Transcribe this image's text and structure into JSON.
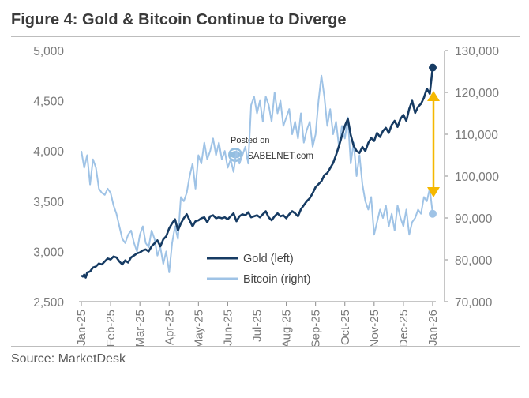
{
  "header": {
    "title": "Figure 4: Gold & Bitcoin Continue to Diverge"
  },
  "footer": {
    "source": "Source: MarketDesk"
  },
  "watermark": {
    "line1": "Posted on",
    "line2": "ISABELNET.com"
  },
  "colors": {
    "gold": "#163b63",
    "bitcoin": "#9fc3e6",
    "arrow": "#f5b800",
    "axis": "#8c8c8c",
    "tick_text": "#7a7a7a"
  },
  "chart_data": {
    "type": "line",
    "title": "Figure 4: Gold & Bitcoin Continue to Diverge",
    "x_tick_labels": [
      "Jan-25",
      "Feb-25",
      "Mar-25",
      "Apr-25",
      "May-25",
      "Jun-25",
      "Jul-25",
      "Aug-25",
      "Sep-25",
      "Oct-25",
      "Nov-25",
      "Dec-25",
      "Jan-26"
    ],
    "y_left": {
      "range": [
        2500,
        5000
      ],
      "ticks": [
        2500,
        3000,
        3500,
        4000,
        4500,
        5000
      ],
      "tick_labels": [
        "2,500",
        "3,000",
        "3,500",
        "4,000",
        "4,500",
        "5,000"
      ]
    },
    "y_right": {
      "range": [
        70000,
        130000
      ],
      "ticks": [
        70000,
        80000,
        90000,
        100000,
        110000,
        120000,
        130000
      ],
      "tick_labels": [
        "70,000",
        "80,000",
        "90,000",
        "100,000",
        "110,000",
        "120,000",
        "130,000"
      ]
    },
    "legend": [
      "Gold (left)",
      "Bitcoin (right)"
    ],
    "series": [
      {
        "name": "Gold (left)",
        "axis": "left",
        "x": [
          0,
          0.05,
          0.1,
          0.15,
          0.2,
          0.3,
          0.4,
          0.5,
          0.6,
          0.7,
          0.8,
          0.9,
          1.0,
          1.1,
          1.2,
          1.3,
          1.4,
          1.5,
          1.6,
          1.7,
          1.8,
          1.9,
          2.0,
          2.1,
          2.2,
          2.3,
          2.4,
          2.5,
          2.6,
          2.7,
          2.8,
          2.9,
          3.0,
          3.1,
          3.2,
          3.3,
          3.4,
          3.5,
          3.6,
          3.7,
          3.8,
          3.9,
          4.0,
          4.1,
          4.2,
          4.3,
          4.4,
          4.5,
          4.6,
          4.7,
          4.8,
          4.9,
          5.0,
          5.1,
          5.2,
          5.3,
          5.4,
          5.5,
          5.6,
          5.7,
          5.8,
          5.9,
          6.0,
          6.1,
          6.2,
          6.3,
          6.4,
          6.5,
          6.6,
          6.7,
          6.8,
          6.9,
          7.0,
          7.1,
          7.2,
          7.3,
          7.4,
          7.5,
          7.6,
          7.7,
          7.8,
          7.9,
          8.0,
          8.1,
          8.2,
          8.3,
          8.4,
          8.5,
          8.6,
          8.7,
          8.8,
          8.9,
          9.0,
          9.1,
          9.2,
          9.3,
          9.4,
          9.5,
          9.6,
          9.7,
          9.8,
          9.9,
          10.0,
          10.1,
          10.2,
          10.3,
          10.4,
          10.5,
          10.6,
          10.7,
          10.8,
          10.9,
          11.0,
          11.1,
          11.2,
          11.3,
          11.4,
          11.5,
          11.6,
          11.7,
          11.8,
          11.9,
          12.0
        ],
        "values": [
          2760,
          2750,
          2770,
          2740,
          2790,
          2800,
          2840,
          2850,
          2880,
          2870,
          2900,
          2930,
          2920,
          2950,
          2940,
          2900,
          2870,
          2910,
          2890,
          2940,
          2960,
          2980,
          2990,
          3010,
          3020,
          3000,
          3050,
          3080,
          3110,
          3050,
          3120,
          3150,
          3230,
          3280,
          3320,
          3210,
          3280,
          3330,
          3370,
          3310,
          3250,
          3300,
          3310,
          3330,
          3340,
          3290,
          3350,
          3360,
          3330,
          3340,
          3330,
          3340,
          3320,
          3350,
          3380,
          3300,
          3350,
          3370,
          3360,
          3390,
          3340,
          3350,
          3360,
          3340,
          3370,
          3400,
          3340,
          3310,
          3350,
          3380,
          3350,
          3360,
          3330,
          3370,
          3400,
          3380,
          3350,
          3420,
          3460,
          3500,
          3530,
          3580,
          3640,
          3670,
          3700,
          3760,
          3780,
          3830,
          3880,
          3960,
          4050,
          4150,
          4250,
          4320,
          4160,
          4050,
          4000,
          3980,
          4040,
          4000,
          4080,
          4130,
          4100,
          4180,
          4140,
          4200,
          4230,
          4180,
          4260,
          4300,
          4240,
          4320,
          4360,
          4300,
          4420,
          4500,
          4380,
          4440,
          4470,
          4530,
          4620,
          4570,
          4830
        ]
      },
      {
        "name": "Bitcoin (right)",
        "axis": "right",
        "x": [
          0,
          0.1,
          0.2,
          0.3,
          0.4,
          0.5,
          0.6,
          0.7,
          0.8,
          0.9,
          1.0,
          1.1,
          1.2,
          1.3,
          1.4,
          1.5,
          1.6,
          1.7,
          1.8,
          1.9,
          2.0,
          2.1,
          2.2,
          2.3,
          2.4,
          2.5,
          2.6,
          2.7,
          2.8,
          2.9,
          3.0,
          3.1,
          3.2,
          3.3,
          3.4,
          3.5,
          3.6,
          3.7,
          3.8,
          3.9,
          4.0,
          4.1,
          4.2,
          4.3,
          4.4,
          4.5,
          4.6,
          4.7,
          4.8,
          4.9,
          5.0,
          5.1,
          5.2,
          5.3,
          5.4,
          5.5,
          5.6,
          5.7,
          5.8,
          5.9,
          6.0,
          6.1,
          6.2,
          6.3,
          6.4,
          6.5,
          6.6,
          6.7,
          6.8,
          6.9,
          7.0,
          7.1,
          7.2,
          7.3,
          7.4,
          7.5,
          7.6,
          7.7,
          7.8,
          7.9,
          8.0,
          8.1,
          8.2,
          8.3,
          8.4,
          8.5,
          8.6,
          8.7,
          8.8,
          8.9,
          9.0,
          9.1,
          9.2,
          9.3,
          9.4,
          9.5,
          9.6,
          9.7,
          9.8,
          9.9,
          10.0,
          10.1,
          10.2,
          10.3,
          10.4,
          10.5,
          10.6,
          10.7,
          10.8,
          10.9,
          11.0,
          11.1,
          11.2,
          11.3,
          11.4,
          11.5,
          11.6,
          11.7,
          11.8,
          11.9,
          12.0
        ],
        "values": [
          106000,
          102000,
          105000,
          98000,
          104000,
          102000,
          97000,
          96000,
          95500,
          97000,
          96000,
          93000,
          91000,
          88000,
          85000,
          84000,
          86000,
          87000,
          84000,
          82000,
          86000,
          88000,
          84000,
          83000,
          87000,
          85000,
          81000,
          83000,
          79000,
          82000,
          77000,
          84000,
          88000,
          85000,
          95000,
          94000,
          96000,
          100000,
          103000,
          97000,
          105000,
          103000,
          108000,
          104000,
          106000,
          109000,
          105000,
          108000,
          104000,
          106000,
          102000,
          104000,
          101000,
          106000,
          103000,
          105000,
          107000,
          103000,
          117000,
          119000,
          115000,
          118000,
          113000,
          119000,
          117000,
          113000,
          120000,
          115000,
          118000,
          112000,
          114000,
          116000,
          110000,
          113000,
          109000,
          115000,
          108000,
          111000,
          113000,
          107000,
          110000,
          118000,
          124000,
          119000,
          112000,
          116000,
          110000,
          113000,
          107000,
          112000,
          109000,
          114000,
          103000,
          108000,
          100000,
          105000,
          98000,
          94000,
          92000,
          95000,
          86000,
          89000,
          92000,
          90000,
          93000,
          88000,
          91000,
          87000,
          93000,
          90000,
          88000,
          92000,
          86000,
          89000,
          90000,
          92000,
          91000,
          95000,
          94000,
          97000,
          91000
        ]
      }
    ],
    "endpoints": {
      "gold_last": 4830,
      "bitcoin_last": 91000
    }
  }
}
